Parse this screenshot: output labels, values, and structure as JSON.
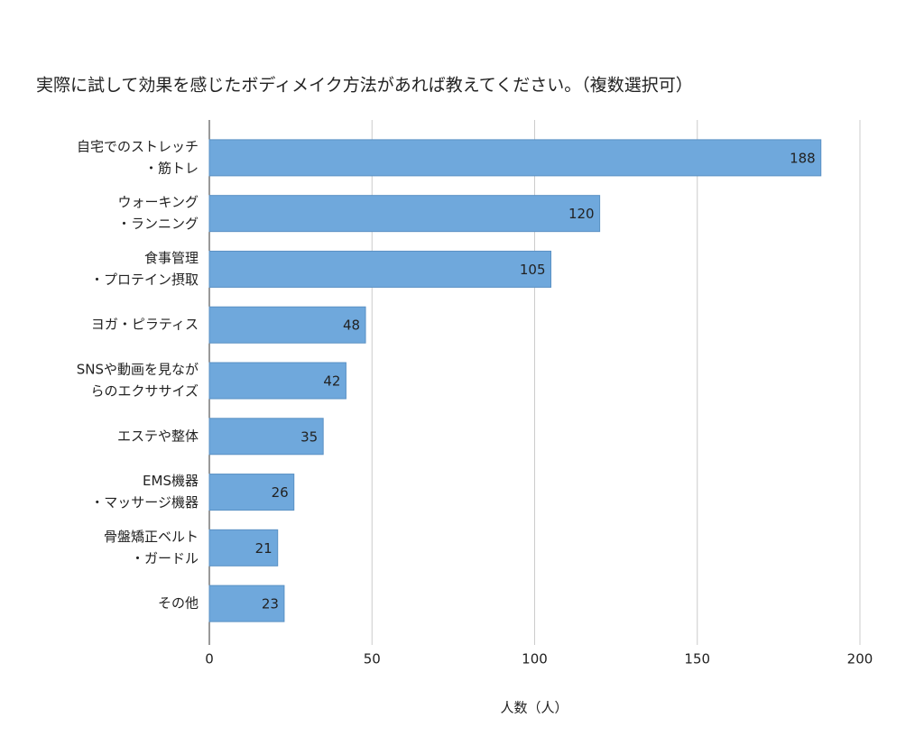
{
  "chart_data": {
    "type": "bar",
    "orientation": "horizontal",
    "title": "実際に試して効果を感じたボディメイク方法があれば教えてください。（複数選択可）",
    "x_label": "人数（人）",
    "categories": [
      [
        "自宅でのストレッチ",
        "・筋トレ"
      ],
      [
        "ウォーキング",
        "・ランニング"
      ],
      [
        "食事管理",
        "・プロテイン摂取"
      ],
      [
        "ヨガ・ピラティス"
      ],
      [
        "SNSや動画を見なが",
        "らのエクササイズ"
      ],
      [
        "エステや整体"
      ],
      [
        "EMS機器",
        "・マッサージ機器"
      ],
      [
        "骨盤矯正ベルト",
        "・ガードル"
      ],
      [
        "その他"
      ]
    ],
    "values": [
      188,
      120,
      105,
      48,
      42,
      35,
      26,
      21,
      23
    ],
    "color": "#6fa8dc",
    "xlim": [
      0,
      200
    ],
    "xticks": [
      0,
      50,
      100,
      150,
      200
    ],
    "grid": true
  }
}
